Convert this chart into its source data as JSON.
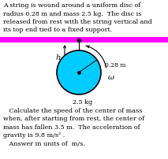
{
  "text_line1": "A string is wound around a uniform disc of",
  "text_line2": "radius 0.28 m and mass 2.5 kg.  The disc is",
  "text_line3": "released from rest with the string vertical and",
  "text_line4": "its top end tied to a fixed support.",
  "bar_color": "#FF00FF",
  "circle_fill": "#00CCFF",
  "circle_edge": "#000000",
  "radius_label": "0.28 m",
  "mass_label": "2.5 kg",
  "omega_label": "ω",
  "h_label": "h",
  "question_line1": "   Calculate the speed of the center of mass",
  "question_line2": "when, after starting from rest, the center of",
  "question_line3": "mass has fallen 3.5 m.  The acceleration of",
  "question_line4": "gravity is 9.8 m/s² .",
  "question_line5": "   Answer in units of  m/s.",
  "background": "#ffffff"
}
